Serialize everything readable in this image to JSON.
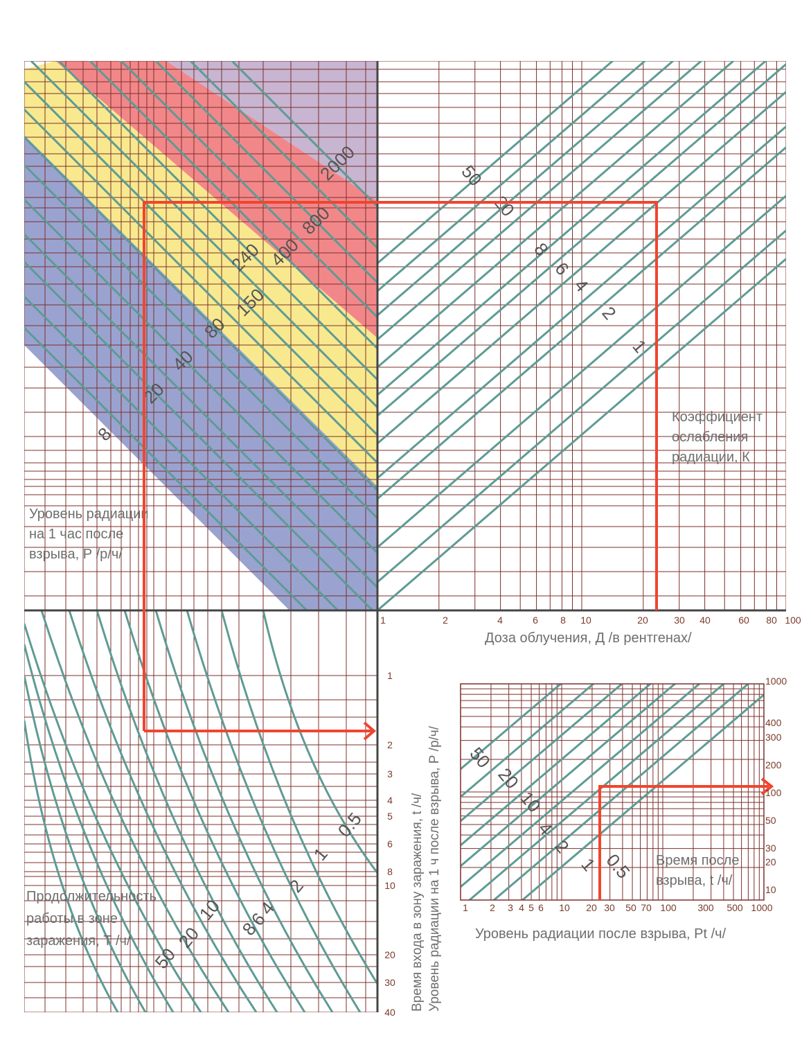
{
  "colors": {
    "grid": "#7b2f2a",
    "curve": "#5e9b94",
    "axis": "#444444",
    "marker": "#f0452f",
    "zone_lilac": "#c7b5d1",
    "zone_red": "#f2878a",
    "zone_yellow": "#f8e98f",
    "zone_blue": "#9aa3d0",
    "text": "#6e6e6e",
    "tick_text": "#7a3b2a"
  },
  "top_left": {
    "axis_title": [
      "Уровень радиации",
      "на 1 час после",
      "взрыва, Р /р/ч/"
    ],
    "curve_labels": [
      "8",
      "20",
      "40",
      "80",
      "150",
      "240",
      "400",
      "800",
      "2000"
    ],
    "zones": [
      "blue",
      "yellow",
      "red",
      "lilac"
    ]
  },
  "top_right": {
    "axis_title": [
      "Коэффициент",
      "ослабления",
      "радиации, К"
    ],
    "curve_labels": [
      "50",
      "20",
      "8",
      "6",
      "4",
      "2",
      "1"
    ],
    "x_axis_title": "Доза облучения, Д /в рентгенах/",
    "x_ticks": [
      "1",
      "2",
      "4",
      "6",
      "8",
      "10",
      "20",
      "30",
      "40",
      "60",
      "80",
      "100"
    ]
  },
  "bottom_left": {
    "axis_title": [
      "Продолжительность",
      "работы в зоне",
      "заражения, Т /ч/"
    ],
    "curve_labels": [
      "50",
      "20",
      "10",
      "8",
      "6",
      "4",
      "2",
      "1",
      "0.5"
    ],
    "y_ticks": [
      "1",
      "2",
      "3",
      "4",
      "5",
      "6",
      "8",
      "10",
      "20",
      "30",
      "40"
    ],
    "vertical_titles": [
      "Время входа в зону заражения, t /ч/",
      "Уровень радиации на 1 ч после взрыва, Р /р/ч/"
    ]
  },
  "inset": {
    "x_axis_title": "Уровень радиации после взрыва, Рt /ч/",
    "x_ticks": [
      "1",
      "2",
      "3",
      "4",
      "5",
      "6",
      "10",
      "20",
      "30",
      "50",
      "70",
      "100",
      "300",
      "500",
      "1000"
    ],
    "y_ticks": [
      "1000",
      "400",
      "300",
      "200",
      "100",
      "50",
      "30",
      "20",
      "10"
    ],
    "y_axis_title": [
      "Время после",
      "взрыва, t /ч/"
    ],
    "curve_labels": [
      "50",
      "20",
      "10",
      "4",
      "2",
      "1",
      "0.5"
    ]
  }
}
